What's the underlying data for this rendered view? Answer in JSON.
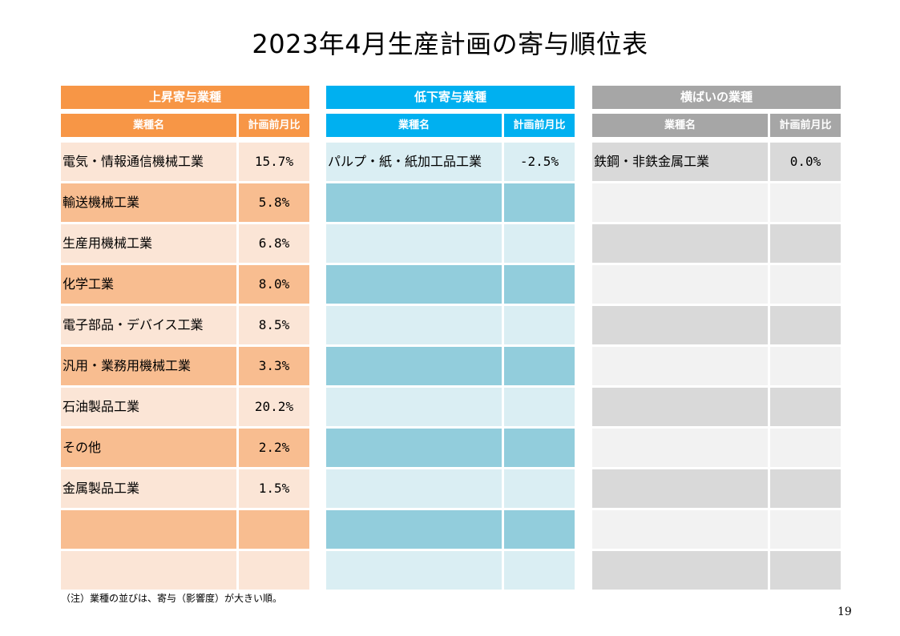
{
  "title": "2023年4月生産計画の寄与順位表",
  "columns": {
    "name": "業種名",
    "value": "計画前月比"
  },
  "panels": {
    "up": {
      "header": "上昇寄与業種",
      "rows": [
        {
          "name": "電気・情報通信機械工業",
          "value": "15.7%"
        },
        {
          "name": "輸送機械工業",
          "value": "5.8%"
        },
        {
          "name": "生産用機械工業",
          "value": "6.8%"
        },
        {
          "name": "化学工業",
          "value": "8.0%"
        },
        {
          "name": "電子部品・デバイス工業",
          "value": "8.5%"
        },
        {
          "name": "汎用・業務用機械工業",
          "value": "3.3%"
        },
        {
          "name": "石油製品工業",
          "value": "20.2%"
        },
        {
          "name": "その他",
          "value": "2.2%"
        },
        {
          "name": "金属製品工業",
          "value": "1.5%"
        },
        {
          "name": "",
          "value": ""
        },
        {
          "name": "",
          "value": ""
        }
      ]
    },
    "down": {
      "header": "低下寄与業種",
      "rows": [
        {
          "name": "パルプ・紙・紙加工品工業",
          "value": "-2.5%"
        },
        {
          "name": "",
          "value": ""
        },
        {
          "name": "",
          "value": ""
        },
        {
          "name": "",
          "value": ""
        },
        {
          "name": "",
          "value": ""
        },
        {
          "name": "",
          "value": ""
        },
        {
          "name": "",
          "value": ""
        },
        {
          "name": "",
          "value": ""
        },
        {
          "name": "",
          "value": ""
        },
        {
          "name": "",
          "value": ""
        },
        {
          "name": "",
          "value": ""
        }
      ]
    },
    "flat": {
      "header": "横ばいの業種",
      "rows": [
        {
          "name": "鉄鋼・非鉄金属工業",
          "value": "0.0%"
        },
        {
          "name": "",
          "value": ""
        },
        {
          "name": "",
          "value": ""
        },
        {
          "name": "",
          "value": ""
        },
        {
          "name": "",
          "value": ""
        },
        {
          "name": "",
          "value": ""
        },
        {
          "name": "",
          "value": ""
        },
        {
          "name": "",
          "value": ""
        },
        {
          "name": "",
          "value": ""
        },
        {
          "name": "",
          "value": ""
        },
        {
          "name": "",
          "value": ""
        }
      ]
    }
  },
  "note": "（注）業種の並びは、寄与（影響度）が大きい順。",
  "page_number": "19",
  "colors": {
    "up_header": "#f79646",
    "down_header": "#00b0f0",
    "flat_header": "#a6a6a6"
  }
}
